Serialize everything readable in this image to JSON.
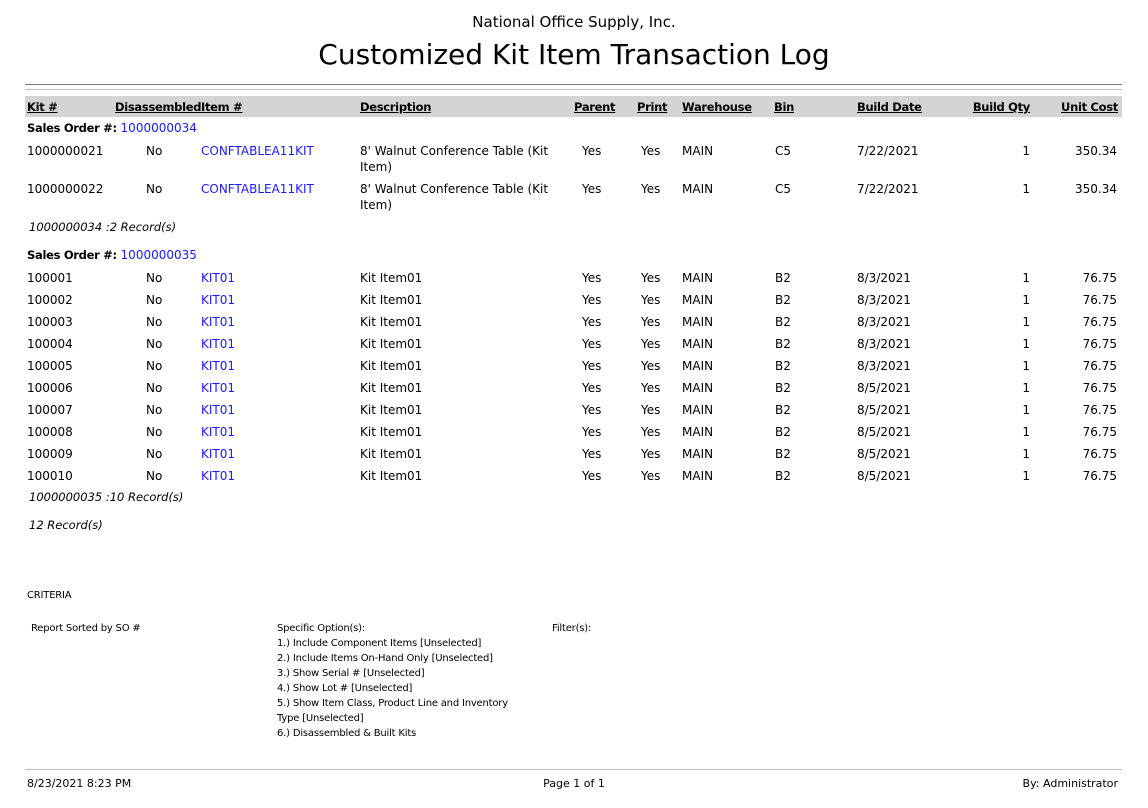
{
  "report": {
    "company": "National Office Supply, Inc.",
    "title": "Customized Kit Item Transaction Log"
  },
  "columns": [
    "Kit #",
    "Disassembled",
    "Item #",
    "Description",
    "Parent",
    "Print",
    "Warehouse",
    "Bin",
    "Build Date",
    "Build Qty",
    "Unit Cost"
  ],
  "groups": [
    {
      "label": "Sales Order #:",
      "so": "1000000034",
      "rows": [
        {
          "kit": "1000000021",
          "disassembled": "No",
          "item": "CONFTABLEA11KIT",
          "description": "8' Walnut Conference Table (Kit",
          "description2": "Item)",
          "parent": "Yes",
          "print": "Yes",
          "warehouse": "MAIN",
          "bin": "C5",
          "build_date": "7/22/2021",
          "build_qty": "1",
          "unit_cost": "350.34"
        },
        {
          "kit": "1000000022",
          "disassembled": "No",
          "item": "CONFTABLEA11KIT",
          "description": "8' Walnut Conference Table (Kit",
          "description2": "Item)",
          "parent": "Yes",
          "print": "Yes",
          "warehouse": "MAIN",
          "bin": "C5",
          "build_date": "7/22/2021",
          "build_qty": "1",
          "unit_cost": "350.34"
        }
      ],
      "subtotal": "1000000034 :2 Record(s)"
    },
    {
      "label": "Sales Order #:",
      "so": "1000000035",
      "rows": [
        {
          "kit": "100001",
          "disassembled": "No",
          "item": "KIT01",
          "description": "Kit Item01",
          "parent": "Yes",
          "print": "Yes",
          "warehouse": "MAIN",
          "bin": "B2",
          "build_date": "8/3/2021",
          "build_qty": "1",
          "unit_cost": "76.75"
        },
        {
          "kit": "100002",
          "disassembled": "No",
          "item": "KIT01",
          "description": "Kit Item01",
          "parent": "Yes",
          "print": "Yes",
          "warehouse": "MAIN",
          "bin": "B2",
          "build_date": "8/3/2021",
          "build_qty": "1",
          "unit_cost": "76.75"
        },
        {
          "kit": "100003",
          "disassembled": "No",
          "item": "KIT01",
          "description": "Kit Item01",
          "parent": "Yes",
          "print": "Yes",
          "warehouse": "MAIN",
          "bin": "B2",
          "build_date": "8/3/2021",
          "build_qty": "1",
          "unit_cost": "76.75"
        },
        {
          "kit": "100004",
          "disassembled": "No",
          "item": "KIT01",
          "description": "Kit Item01",
          "parent": "Yes",
          "print": "Yes",
          "warehouse": "MAIN",
          "bin": "B2",
          "build_date": "8/3/2021",
          "build_qty": "1",
          "unit_cost": "76.75"
        },
        {
          "kit": "100005",
          "disassembled": "No",
          "item": "KIT01",
          "description": "Kit Item01",
          "parent": "Yes",
          "print": "Yes",
          "warehouse": "MAIN",
          "bin": "B2",
          "build_date": "8/3/2021",
          "build_qty": "1",
          "unit_cost": "76.75"
        },
        {
          "kit": "100006",
          "disassembled": "No",
          "item": "KIT01",
          "description": "Kit Item01",
          "parent": "Yes",
          "print": "Yes",
          "warehouse": "MAIN",
          "bin": "B2",
          "build_date": "8/5/2021",
          "build_qty": "1",
          "unit_cost": "76.75"
        },
        {
          "kit": "100007",
          "disassembled": "No",
          "item": "KIT01",
          "description": "Kit Item01",
          "parent": "Yes",
          "print": "Yes",
          "warehouse": "MAIN",
          "bin": "B2",
          "build_date": "8/5/2021",
          "build_qty": "1",
          "unit_cost": "76.75"
        },
        {
          "kit": "100008",
          "disassembled": "No",
          "item": "KIT01",
          "description": "Kit Item01",
          "parent": "Yes",
          "print": "Yes",
          "warehouse": "MAIN",
          "bin": "B2",
          "build_date": "8/5/2021",
          "build_qty": "1",
          "unit_cost": "76.75"
        },
        {
          "kit": "100009",
          "disassembled": "No",
          "item": "KIT01",
          "description": "Kit Item01",
          "parent": "Yes",
          "print": "Yes",
          "warehouse": "MAIN",
          "bin": "B2",
          "build_date": "8/5/2021",
          "build_qty": "1",
          "unit_cost": "76.75"
        },
        {
          "kit": "100010",
          "disassembled": "No",
          "item": "KIT01",
          "description": "Kit Item01",
          "parent": "Yes",
          "print": "Yes",
          "warehouse": "MAIN",
          "bin": "B2",
          "build_date": "8/5/2021",
          "build_qty": "1",
          "unit_cost": "76.75"
        }
      ],
      "subtotal": "1000000035 :10 Record(s)"
    }
  ],
  "total": "12 Record(s)",
  "criteria": {
    "heading": "CRITERIA",
    "sorted_by": "Report Sorted by SO #",
    "options_label": "Specific Option(s):",
    "options": [
      "1.) Include Component Items [Unselected]",
      "2.) Include Items On-Hand Only [Unselected]",
      "3.) Show Serial # [Unselected]",
      "4.) Show Lot # [Unselected]",
      "5.) Show Item Class, Product Line and Inventory",
      "Type [Unselected]",
      "6.) Disassembled & Built Kits"
    ],
    "filters_label": "Filter(s):"
  },
  "footer": {
    "printed": "8/23/2021 8:23 PM",
    "page": "Page 1 of 1",
    "user": "By: Administrator"
  },
  "colors": {
    "link": "#1a1aff",
    "header_bar": "#d4d4d4"
  }
}
